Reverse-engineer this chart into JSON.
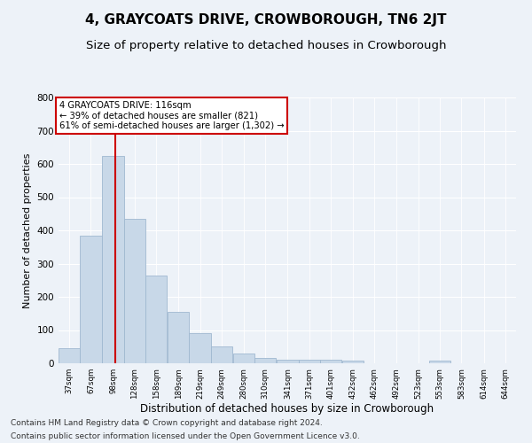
{
  "title": "4, GRAYCOATS DRIVE, CROWBOROUGH, TN6 2JT",
  "subtitle": "Size of property relative to detached houses in Crowborough",
  "xlabel": "Distribution of detached houses by size in Crowborough",
  "ylabel": "Number of detached properties",
  "bins": [
    "37sqm",
    "67sqm",
    "98sqm",
    "128sqm",
    "158sqm",
    "189sqm",
    "219sqm",
    "249sqm",
    "280sqm",
    "310sqm",
    "341sqm",
    "371sqm",
    "401sqm",
    "432sqm",
    "462sqm",
    "492sqm",
    "523sqm",
    "553sqm",
    "583sqm",
    "614sqm",
    "644sqm"
  ],
  "bar_heights": [
    45,
    385,
    625,
    435,
    265,
    155,
    92,
    52,
    30,
    17,
    12,
    12,
    12,
    8,
    0,
    0,
    0,
    8,
    0,
    0,
    0
  ],
  "bar_color": "#c8d8e8",
  "bar_edge_color": "#a0b8d0",
  "bar_left_edges": [
    37,
    67,
    98,
    128,
    158,
    189,
    219,
    249,
    280,
    310,
    341,
    371,
    401,
    432,
    462,
    492,
    523,
    553,
    583,
    614,
    644
  ],
  "bin_width": 30,
  "property_size": 116,
  "vline_color": "#cc0000",
  "annotation_line1": "4 GRAYCOATS DRIVE: 116sqm",
  "annotation_line2": "← 39% of detached houses are smaller (821)",
  "annotation_line3": "61% of semi-detached houses are larger (1,302) →",
  "annotation_box_color": "#ffffff",
  "annotation_box_edge": "#cc0000",
  "ylim": [
    0,
    800
  ],
  "yticks": [
    0,
    100,
    200,
    300,
    400,
    500,
    600,
    700,
    800
  ],
  "footnote1": "Contains HM Land Registry data © Crown copyright and database right 2024.",
  "footnote2": "Contains public sector information licensed under the Open Government Licence v3.0.",
  "bg_color": "#edf2f8",
  "plot_bg_color": "#edf2f8",
  "grid_color": "#ffffff",
  "title_fontsize": 11,
  "subtitle_fontsize": 9.5,
  "xlabel_fontsize": 8.5,
  "ylabel_fontsize": 8,
  "footnote_fontsize": 6.5
}
